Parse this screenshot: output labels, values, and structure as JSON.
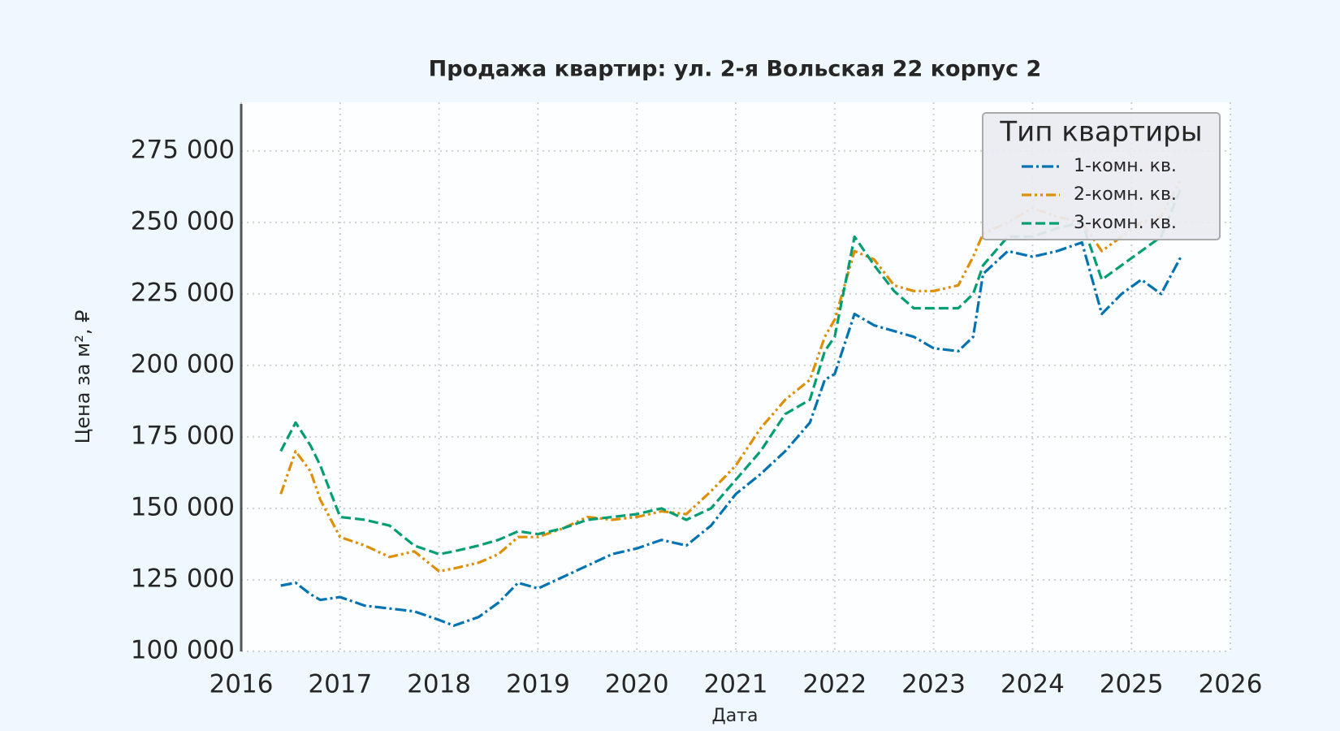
{
  "chart_data": {
    "type": "line",
    "title": "Продажа квартир: ул. 2-я Вольская 22 корпус 2",
    "xlabel": "Дата",
    "ylabel": "Цена за м², ₽",
    "legend_title": "Тип квартиры",
    "legend": "upper right",
    "grid": true,
    "xlim": [
      2016,
      2026
    ],
    "xticks": [
      2016,
      2017,
      2018,
      2019,
      2020,
      2021,
      2022,
      2023,
      2024,
      2025,
      2026
    ],
    "ylim": [
      100000,
      290000
    ],
    "yticks": [
      {
        "value": 100000,
        "label": "100 000"
      },
      {
        "value": 125000,
        "label": "125 000"
      },
      {
        "value": 150000,
        "label": "150 000"
      },
      {
        "value": 175000,
        "label": "175 000"
      },
      {
        "value": 200000,
        "label": "200 000"
      },
      {
        "value": 225000,
        "label": "225 000"
      },
      {
        "value": 250000,
        "label": "250 000"
      },
      {
        "value": 275000,
        "label": "275 000"
      }
    ],
    "x": [
      2016.4,
      2016.55,
      2016.7,
      2016.8,
      2017.0,
      2017.25,
      2017.5,
      2017.75,
      2018.0,
      2018.15,
      2018.4,
      2018.6,
      2018.8,
      2019.0,
      2019.25,
      2019.5,
      2019.75,
      2020.0,
      2020.25,
      2020.5,
      2020.75,
      2021.0,
      2021.25,
      2021.5,
      2021.75,
      2021.9,
      2022.0,
      2022.2,
      2022.4,
      2022.6,
      2022.8,
      2023.0,
      2023.25,
      2023.4,
      2023.5,
      2023.75,
      2024.0,
      2024.25,
      2024.5,
      2024.7,
      2024.9,
      2025.1,
      2025.3,
      2025.5
    ],
    "series": [
      {
        "name": "1-комн. кв.",
        "color": "#0173b2",
        "dash": "14 4 3 4",
        "values": [
          123000,
          124000,
          120000,
          118000,
          119000,
          116000,
          115000,
          114000,
          111000,
          109000,
          112000,
          117000,
          124000,
          122000,
          126000,
          130000,
          134000,
          136000,
          139000,
          137000,
          144000,
          155000,
          162000,
          170000,
          180000,
          195000,
          197000,
          218000,
          214000,
          212000,
          210000,
          206000,
          205000,
          210000,
          232000,
          240000,
          238000,
          240000,
          243000,
          218000,
          225000,
          230000,
          225000,
          238000
        ]
      },
      {
        "name": "2-комн. кв.",
        "color": "#de8f05",
        "dash": "12 4 3 4 3 4",
        "values": [
          155000,
          170000,
          163000,
          153000,
          140000,
          137000,
          133000,
          135000,
          128000,
          129000,
          131000,
          134000,
          140000,
          140000,
          143000,
          147000,
          146000,
          147000,
          149000,
          148000,
          156000,
          165000,
          178000,
          188000,
          195000,
          210000,
          216000,
          240000,
          237000,
          228000,
          226000,
          226000,
          228000,
          238000,
          246000,
          250000,
          255000,
          252000,
          250000,
          240000,
          245000,
          250000,
          252000,
          265000
        ]
      },
      {
        "name": "3-комн. кв.",
        "color": "#029e73",
        "dash": "12 5",
        "values": [
          170000,
          180000,
          172000,
          165000,
          147000,
          146000,
          144000,
          137000,
          134000,
          135000,
          137000,
          139000,
          142000,
          141000,
          143000,
          146000,
          147000,
          148000,
          150000,
          146000,
          150000,
          160000,
          170000,
          183000,
          188000,
          205000,
          210000,
          245000,
          235000,
          226000,
          220000,
          220000,
          220000,
          225000,
          235000,
          245000,
          245000,
          248000,
          250000,
          230000,
          235000,
          240000,
          245000,
          262000
        ]
      }
    ]
  }
}
